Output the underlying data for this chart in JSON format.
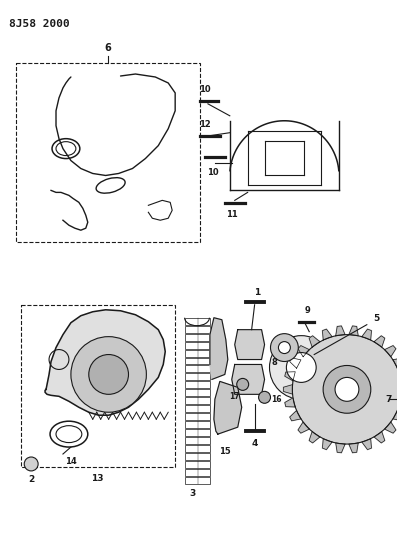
{
  "title": "8J58 2000",
  "bg_color": "#ffffff",
  "line_color": "#1a1a1a",
  "figsize": [
    3.98,
    5.33
  ],
  "dpi": 100
}
